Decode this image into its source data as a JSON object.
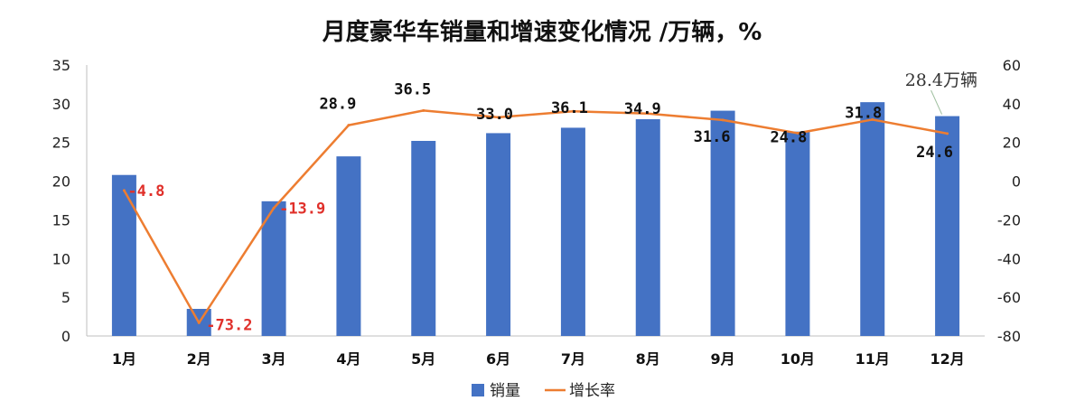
{
  "chart_data": {
    "type": "bar",
    "title": "月度豪华车销量和增速变化情况   /万辆，%",
    "categories": [
      "1月",
      "2月",
      "3月",
      "4月",
      "5月",
      "6月",
      "7月",
      "8月",
      "9月",
      "10月",
      "11月",
      "12月"
    ],
    "y_left": {
      "ylim": [
        0,
        35
      ],
      "ticks": [
        "0",
        "5",
        "10",
        "15",
        "20",
        "25",
        "30",
        "35"
      ]
    },
    "y_right": {
      "ylim": [
        -80,
        60
      ],
      "ticks": [
        "-80",
        "-60",
        "-40",
        "-20",
        "0",
        "20",
        "40",
        "60"
      ]
    },
    "series": [
      {
        "name": "销量",
        "type": "bar",
        "axis": "left",
        "color": "#4472C4",
        "values": [
          20.8,
          3.5,
          17.4,
          23.2,
          25.2,
          26.2,
          26.9,
          28.0,
          29.1,
          26.4,
          30.2,
          28.4
        ]
      },
      {
        "name": "增长率",
        "type": "line",
        "axis": "right",
        "color": "#ED7D31",
        "values": [
          -4.8,
          -73.2,
          -13.9,
          28.9,
          36.5,
          33.0,
          36.1,
          34.9,
          31.6,
          24.8,
          31.8,
          24.6
        ],
        "labels": [
          "-4.8",
          "-73.2",
          "-13.9",
          "28.9",
          "36.5",
          "33.0",
          "36.1",
          "34.9",
          "31.6",
          "24.8",
          "31.8",
          "24.6"
        ]
      }
    ],
    "annotation": {
      "text": "28.4万辆",
      "category": "12月",
      "series": "销量"
    },
    "legend": {
      "position": "bottom",
      "entries": [
        "销量",
        "增长率"
      ]
    },
    "grid": false,
    "colors": {
      "bar": "#4472C4",
      "line": "#ED7D31",
      "negative_label": "#E0302A",
      "positive_label": "#111111"
    }
  }
}
